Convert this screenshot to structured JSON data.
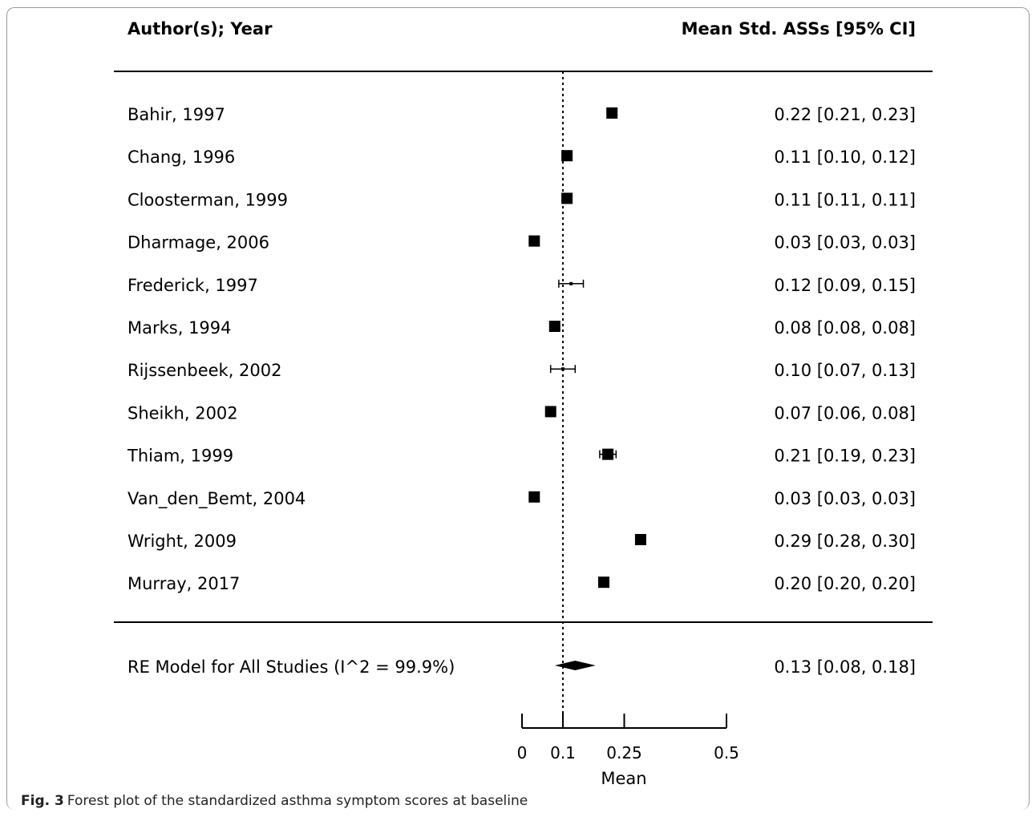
{
  "chart_data": {
    "type": "forest",
    "col_left_header": "Author(s); Year",
    "col_right_header": "Mean Std. ASSs [95% CI]",
    "xlabel": "Mean",
    "xticks": [
      0,
      0.1,
      0.25,
      0.5
    ],
    "xtick_labels": [
      "0",
      "0.1",
      "0.25",
      "0.5"
    ],
    "reference_line": 0.1,
    "studies": [
      {
        "label": "Bahir, 1997",
        "mean": 0.22,
        "lo": 0.21,
        "hi": 0.23,
        "ci_text": "0.22 [0.21, 0.23]",
        "marker": "large"
      },
      {
        "label": "Chang, 1996",
        "mean": 0.11,
        "lo": 0.1,
        "hi": 0.12,
        "ci_text": "0.11 [0.10, 0.12]",
        "marker": "large"
      },
      {
        "label": "Cloosterman, 1999",
        "mean": 0.11,
        "lo": 0.11,
        "hi": 0.11,
        "ci_text": "0.11 [0.11, 0.11]",
        "marker": "large"
      },
      {
        "label": "Dharmage, 2006",
        "mean": 0.03,
        "lo": 0.03,
        "hi": 0.03,
        "ci_text": "0.03 [0.03, 0.03]",
        "marker": "large"
      },
      {
        "label": "Frederick, 1997",
        "mean": 0.12,
        "lo": 0.09,
        "hi": 0.15,
        "ci_text": "0.12 [0.09, 0.15]",
        "marker": "small"
      },
      {
        "label": "Marks, 1994",
        "mean": 0.08,
        "lo": 0.08,
        "hi": 0.08,
        "ci_text": "0.08 [0.08, 0.08]",
        "marker": "large"
      },
      {
        "label": "Rijssenbeek, 2002",
        "mean": 0.1,
        "lo": 0.07,
        "hi": 0.13,
        "ci_text": "0.10 [0.07, 0.13]",
        "marker": "small"
      },
      {
        "label": "Sheikh, 2002",
        "mean": 0.07,
        "lo": 0.06,
        "hi": 0.08,
        "ci_text": "0.07 [0.06, 0.08]",
        "marker": "large"
      },
      {
        "label": "Thiam, 1999",
        "mean": 0.21,
        "lo": 0.19,
        "hi": 0.23,
        "ci_text": "0.21 [0.19, 0.23]",
        "marker": "large"
      },
      {
        "label": "Van_den_Bemt, 2004",
        "mean": 0.03,
        "lo": 0.03,
        "hi": 0.03,
        "ci_text": "0.03 [0.03, 0.03]",
        "marker": "large"
      },
      {
        "label": "Wright, 2009",
        "mean": 0.29,
        "lo": 0.28,
        "hi": 0.3,
        "ci_text": "0.29 [0.28, 0.30]",
        "marker": "large"
      },
      {
        "label": "Murray, 2017",
        "mean": 0.2,
        "lo": 0.2,
        "hi": 0.2,
        "ci_text": "0.20 [0.20, 0.20]",
        "marker": "large"
      }
    ],
    "summary": {
      "label": "RE Model for All Studies (I^2 = 99.9%)",
      "mean": 0.13,
      "lo": 0.08,
      "hi": 0.18,
      "ci_text": "0.13 [0.08, 0.18]"
    }
  },
  "caption": {
    "fig_label": "Fig. 3",
    "text": "Forest plot of the standardized asthma symptom scores at baseline"
  }
}
